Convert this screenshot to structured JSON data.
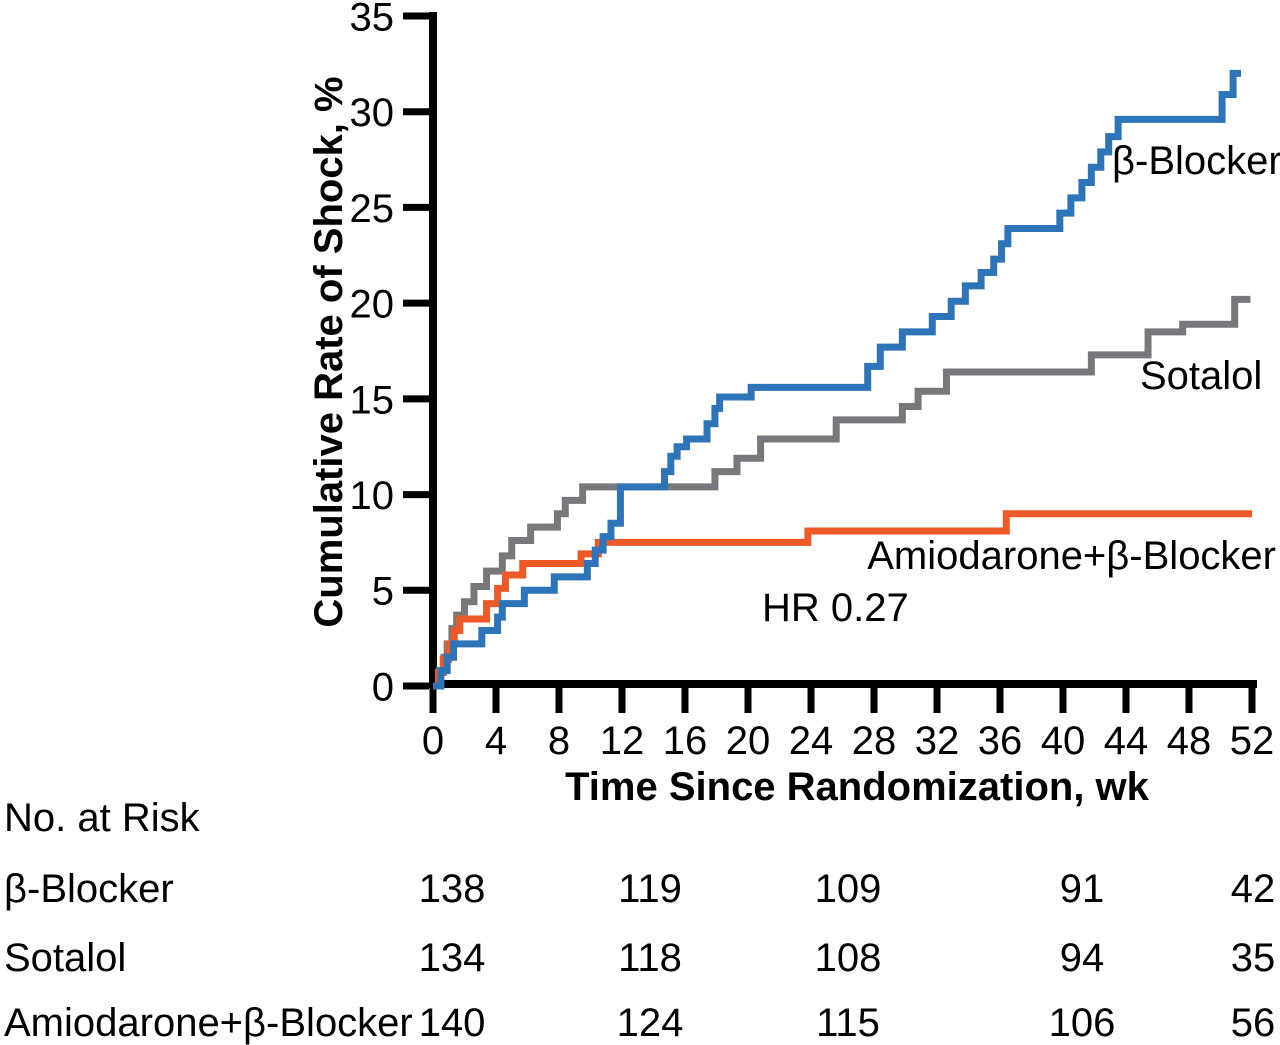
{
  "figure": {
    "kind": "Kaplan-Meier cumulative incidence plot"
  },
  "chart_data": {
    "type": "line",
    "style": "step-after",
    "title": "",
    "xlabel": "Time Since Randomization, wk",
    "ylabel": "Cumulative Rate of Shock, %",
    "xlim": [
      0,
      52
    ],
    "ylim": [
      0,
      35
    ],
    "x_ticks": [
      0,
      4,
      8,
      12,
      16,
      20,
      24,
      28,
      32,
      36,
      40,
      44,
      48,
      52
    ],
    "y_ticks": [
      0,
      5,
      10,
      15,
      20,
      25,
      30,
      35
    ],
    "grid": false,
    "legend_position": "inline-labels",
    "annotations": [
      {
        "text": "HR 0.27",
        "x": 21,
        "y": 4.0
      }
    ],
    "series": [
      {
        "name": "β-Blocker",
        "color": "#2E74B8",
        "end_x": 51.3,
        "steps": [
          [
            0,
            0
          ],
          [
            0.5,
            0.8
          ],
          [
            0.9,
            1.5
          ],
          [
            1.3,
            2.2
          ],
          [
            3.1,
            2.9
          ],
          [
            4.1,
            3.6
          ],
          [
            4.4,
            4.3
          ],
          [
            5.8,
            5.0
          ],
          [
            7.7,
            5.7
          ],
          [
            9.8,
            6.4
          ],
          [
            10.3,
            7.1
          ],
          [
            10.8,
            7.8
          ],
          [
            11.3,
            8.5
          ],
          [
            11.9,
            10.4
          ],
          [
            14.7,
            11.2
          ],
          [
            15.1,
            12.0
          ],
          [
            15.5,
            12.5
          ],
          [
            16.1,
            12.9
          ],
          [
            17.4,
            13.7
          ],
          [
            17.9,
            14.5
          ],
          [
            18.2,
            15.1
          ],
          [
            20.2,
            15.6
          ],
          [
            27.6,
            16.7
          ],
          [
            28.4,
            17.7
          ],
          [
            29.8,
            18.5
          ],
          [
            31.7,
            19.3
          ],
          [
            32.9,
            20.1
          ],
          [
            33.8,
            20.9
          ],
          [
            34.8,
            21.6
          ],
          [
            35.6,
            22.3
          ],
          [
            36.1,
            23.1
          ],
          [
            36.5,
            23.9
          ],
          [
            39.8,
            24.7
          ],
          [
            40.5,
            25.5
          ],
          [
            41.2,
            26.3
          ],
          [
            41.8,
            27.1
          ],
          [
            42.4,
            27.9
          ],
          [
            42.9,
            28.7
          ],
          [
            43.5,
            29.6
          ],
          [
            50.1,
            30.9
          ],
          [
            50.8,
            32.0
          ]
        ]
      },
      {
        "name": "Sotalol",
        "color": "#77787B",
        "end_x": 51.9,
        "steps": [
          [
            0,
            0
          ],
          [
            0.4,
            0.8
          ],
          [
            0.7,
            1.5
          ],
          [
            0.9,
            2.2
          ],
          [
            1.2,
            3.0
          ],
          [
            1.5,
            3.7
          ],
          [
            2.0,
            4.4
          ],
          [
            2.6,
            5.2
          ],
          [
            3.4,
            6.0
          ],
          [
            4.4,
            6.8
          ],
          [
            5.0,
            7.6
          ],
          [
            6.2,
            8.3
          ],
          [
            7.9,
            9.0
          ],
          [
            8.4,
            9.7
          ],
          [
            9.5,
            10.4
          ],
          [
            17.9,
            11.2
          ],
          [
            19.3,
            11.9
          ],
          [
            20.8,
            12.9
          ],
          [
            25.6,
            13.9
          ],
          [
            29.8,
            14.6
          ],
          [
            30.8,
            15.4
          ],
          [
            32.6,
            16.4
          ],
          [
            41.8,
            17.3
          ],
          [
            45.4,
            18.5
          ],
          [
            47.6,
            18.9
          ],
          [
            50.9,
            20.2
          ]
        ]
      },
      {
        "name": "Amiodarone+β-Blocker",
        "color": "#EE5A27",
        "end_x": 52,
        "steps": [
          [
            0,
            0
          ],
          [
            0.35,
            0.7
          ],
          [
            0.65,
            1.4
          ],
          [
            1.0,
            2.2
          ],
          [
            1.35,
            2.9
          ],
          [
            1.7,
            3.5
          ],
          [
            3.4,
            4.3
          ],
          [
            4.1,
            5.1
          ],
          [
            4.6,
            5.8
          ],
          [
            5.7,
            6.4
          ],
          [
            9.4,
            6.9
          ],
          [
            10.5,
            7.5
          ],
          [
            23.8,
            8.1
          ],
          [
            36.4,
            9.0
          ]
        ]
      }
    ]
  },
  "risk_table": {
    "header": "No. at Risk",
    "time_points": [
      0,
      13,
      26,
      39,
      52
    ],
    "rows": [
      {
        "label": "β-Blocker",
        "counts": [
          "138",
          "119",
          "109",
          "91",
          "42"
        ]
      },
      {
        "label": "Sotalol",
        "counts": [
          "134",
          "118",
          "108",
          "94",
          "35"
        ]
      },
      {
        "label": "Amiodarone+β-Blocker",
        "counts": [
          "140",
          "124",
          "115",
          "106",
          "56"
        ]
      }
    ]
  },
  "colors": {
    "axis": "#000000",
    "text": "#000000",
    "beta_blocker": "#2E74B8",
    "sotalol": "#77787B",
    "amiodarone_beta_blocker": "#EE5A27"
  }
}
